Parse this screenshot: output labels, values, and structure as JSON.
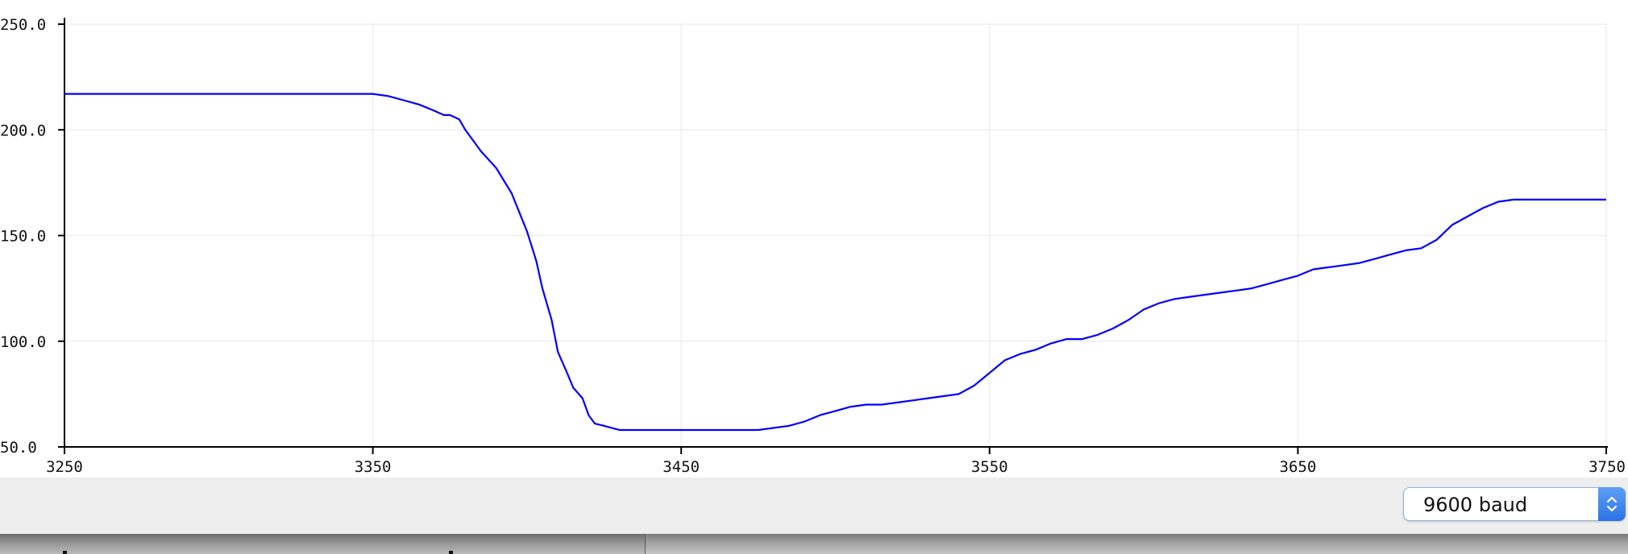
{
  "plotter": {
    "line_color": "#0000ff",
    "grid_color": "#ebebeb",
    "axis_color": "#000000"
  },
  "chart_data": {
    "type": "line",
    "title": "",
    "xlabel": "",
    "ylabel": "",
    "xlim": [
      3250,
      3750
    ],
    "ylim": [
      50,
      250
    ],
    "x_ticks": [
      "3250",
      "3350",
      "3450",
      "3550",
      "3650",
      "3750"
    ],
    "y_ticks": [
      "50.0",
      "100.0",
      "150.0",
      "200.0",
      "250.0"
    ],
    "grid": true,
    "series": [
      {
        "color": "#0000ff",
        "x": [
          3250,
          3260,
          3270,
          3280,
          3290,
          3300,
          3310,
          3320,
          3330,
          3340,
          3350,
          3355,
          3360,
          3365,
          3370,
          3373,
          3375,
          3378,
          3380,
          3383,
          3385,
          3390,
          3395,
          3400,
          3403,
          3405,
          3408,
          3410,
          3413,
          3415,
          3418,
          3420,
          3422,
          3425,
          3430,
          3435,
          3440,
          3450,
          3460,
          3470,
          3475,
          3480,
          3485,
          3490,
          3495,
          3500,
          3505,
          3510,
          3515,
          3520,
          3525,
          3530,
          3535,
          3540,
          3545,
          3550,
          3555,
          3560,
          3565,
          3570,
          3575,
          3580,
          3585,
          3590,
          3595,
          3600,
          3605,
          3610,
          3615,
          3620,
          3625,
          3630,
          3635,
          3640,
          3645,
          3650,
          3655,
          3660,
          3665,
          3670,
          3675,
          3680,
          3685,
          3690,
          3695,
          3700,
          3705,
          3710,
          3715,
          3720,
          3725,
          3730,
          3735,
          3740,
          3745,
          3750
        ],
        "y": [
          217,
          217,
          217,
          217,
          217,
          217,
          217,
          217,
          217,
          217,
          217,
          216,
          214,
          212,
          209,
          207,
          207,
          205,
          200,
          194,
          190,
          182,
          170,
          152,
          138,
          125,
          110,
          95,
          85,
          78,
          73,
          65,
          61,
          60,
          58,
          58,
          58,
          58,
          58,
          58,
          58,
          59,
          60,
          62,
          65,
          67,
          69,
          70,
          70,
          71,
          72,
          73,
          74,
          75,
          79,
          85,
          91,
          94,
          96,
          99,
          101,
          101,
          103,
          106,
          110,
          115,
          118,
          120,
          121,
          122,
          123,
          124,
          125,
          127,
          129,
          131,
          134,
          135,
          136,
          137,
          139,
          141,
          143,
          144,
          148,
          155,
          159,
          163,
          166,
          167,
          167,
          167,
          167,
          167,
          167,
          167
        ]
      }
    ]
  },
  "toolbar": {
    "baud_label": "9600 baud",
    "stepper_icon": "up-down-chevrons"
  }
}
